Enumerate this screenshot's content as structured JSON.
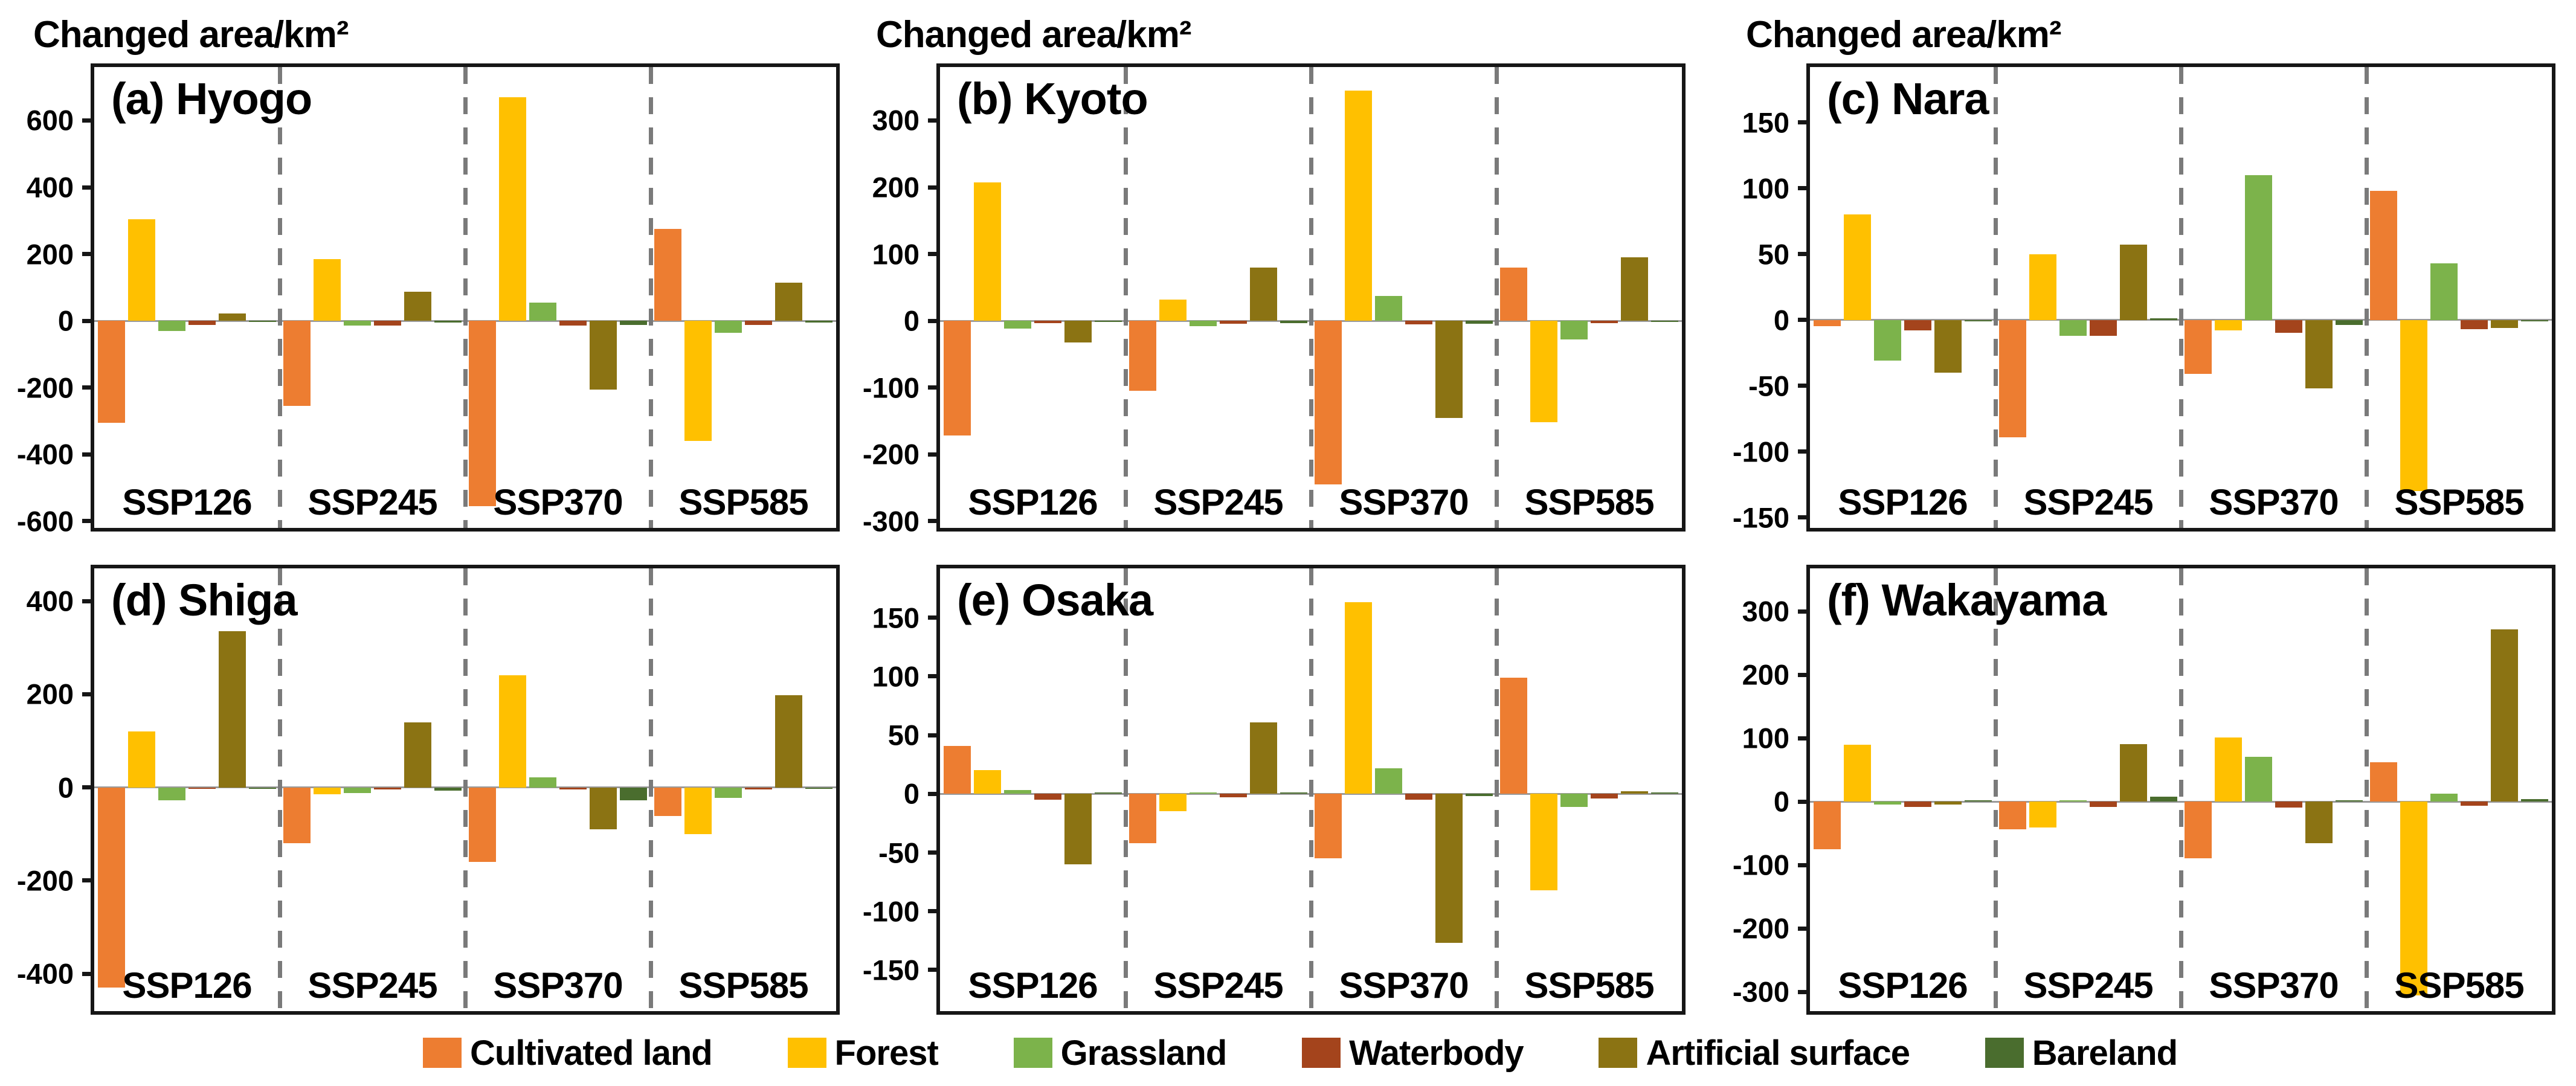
{
  "chart_data": {
    "type": "bar",
    "axis_title": "Changed area/km²",
    "categories": [
      "SSP126",
      "SSP245",
      "SSP370",
      "SSP585"
    ],
    "series": [
      {
        "name": "Cultivated land",
        "color": "#ED7D31"
      },
      {
        "name": "Forest",
        "color": "#FFC000"
      },
      {
        "name": "Grassland",
        "color": "#7CB34B"
      },
      {
        "name": "Waterbody",
        "color": "#A4441C"
      },
      {
        "name": "Artificial surface",
        "color": "#8B7313"
      },
      {
        "name": "Bareland",
        "color": "#4A6D2E"
      }
    ],
    "legend_position": "bottom",
    "grid": false,
    "panels": [
      {
        "panel_label": "(a) Hyogo",
        "region": "Hyogo",
        "ylim": [
          -620,
          760
        ],
        "yticks": [
          600,
          400,
          200,
          0,
          -200,
          -400,
          -600
        ],
        "values": {
          "SSP126": [
            -305,
            305,
            -30,
            -12,
            22,
            -2
          ],
          "SSP245": [
            -255,
            185,
            -15,
            -15,
            88,
            -5
          ],
          "SSP370": [
            -555,
            670,
            55,
            -15,
            -205,
            -12
          ],
          "SSP585": [
            275,
            -360,
            -35,
            -12,
            115,
            -5
          ]
        }
      },
      {
        "panel_label": "(b) Kyoto",
        "region": "Kyoto",
        "ylim": [
          -310,
          380
        ],
        "yticks": [
          300,
          200,
          100,
          0,
          -100,
          -200,
          -300
        ],
        "values": {
          "SSP126": [
            -172,
            207,
            -12,
            -3,
            -32,
            -1
          ],
          "SSP245": [
            -105,
            32,
            -8,
            -4,
            80,
            -3
          ],
          "SSP370": [
            -245,
            345,
            37,
            -5,
            -145,
            -4
          ],
          "SSP585": [
            80,
            -152,
            -28,
            -3,
            95,
            -2
          ]
        }
      },
      {
        "panel_label": "(c) Nara",
        "region": "Nara",
        "ylim": [
          -158,
          192
        ],
        "yticks": [
          150,
          100,
          50,
          0,
          -50,
          -100,
          -150
        ],
        "values": {
          "SSP126": [
            -5,
            80,
            -31,
            -8,
            -40,
            -1
          ],
          "SSP245": [
            -89,
            50,
            -12,
            -12,
            57,
            1
          ],
          "SSP370": [
            -41,
            -8,
            110,
            -10,
            -52,
            -4
          ],
          "SSP585": [
            98,
            -130,
            43,
            -7,
            -6,
            -1
          ]
        }
      },
      {
        "panel_label": "(d) Shiga",
        "region": "Shiga",
        "ylim": [
          -480,
          470
        ],
        "yticks": [
          400,
          200,
          0,
          -200,
          -400
        ],
        "values": {
          "SSP126": [
            -430,
            120,
            -28,
            -3,
            335,
            -3
          ],
          "SSP245": [
            -120,
            -15,
            -12,
            -4,
            140,
            -7
          ],
          "SSP370": [
            -160,
            240,
            22,
            -4,
            -90,
            -28
          ],
          "SSP585": [
            -62,
            -100,
            -22,
            -5,
            198,
            -3
          ]
        }
      },
      {
        "panel_label": "(e) Osaka",
        "region": "Osaka",
        "ylim": [
          -185,
          192
        ],
        "yticks": [
          150,
          100,
          50,
          0,
          -50,
          -100,
          -150
        ],
        "values": {
          "SSP126": [
            41,
            20,
            3,
            -5,
            -60,
            1
          ],
          "SSP245": [
            -42,
            -15,
            1,
            -3,
            61,
            1
          ],
          "SSP370": [
            -55,
            163,
            22,
            -5,
            -127,
            -2
          ],
          "SSP585": [
            99,
            -82,
            -11,
            -4,
            2,
            1
          ]
        }
      },
      {
        "panel_label": "(f) Wakayama",
        "region": "Wakayama",
        "ylim": [
          -330,
          368
        ],
        "yticks": [
          300,
          200,
          100,
          0,
          -100,
          -200,
          -300
        ],
        "values": {
          "SSP126": [
            -75,
            90,
            -4,
            -8,
            -4,
            2
          ],
          "SSP245": [
            -43,
            -41,
            2,
            -8,
            91,
            8
          ],
          "SSP370": [
            -89,
            101,
            71,
            -9,
            -65,
            2
          ],
          "SSP585": [
            62,
            -305,
            13,
            -6,
            272,
            4
          ]
        }
      }
    ]
  }
}
